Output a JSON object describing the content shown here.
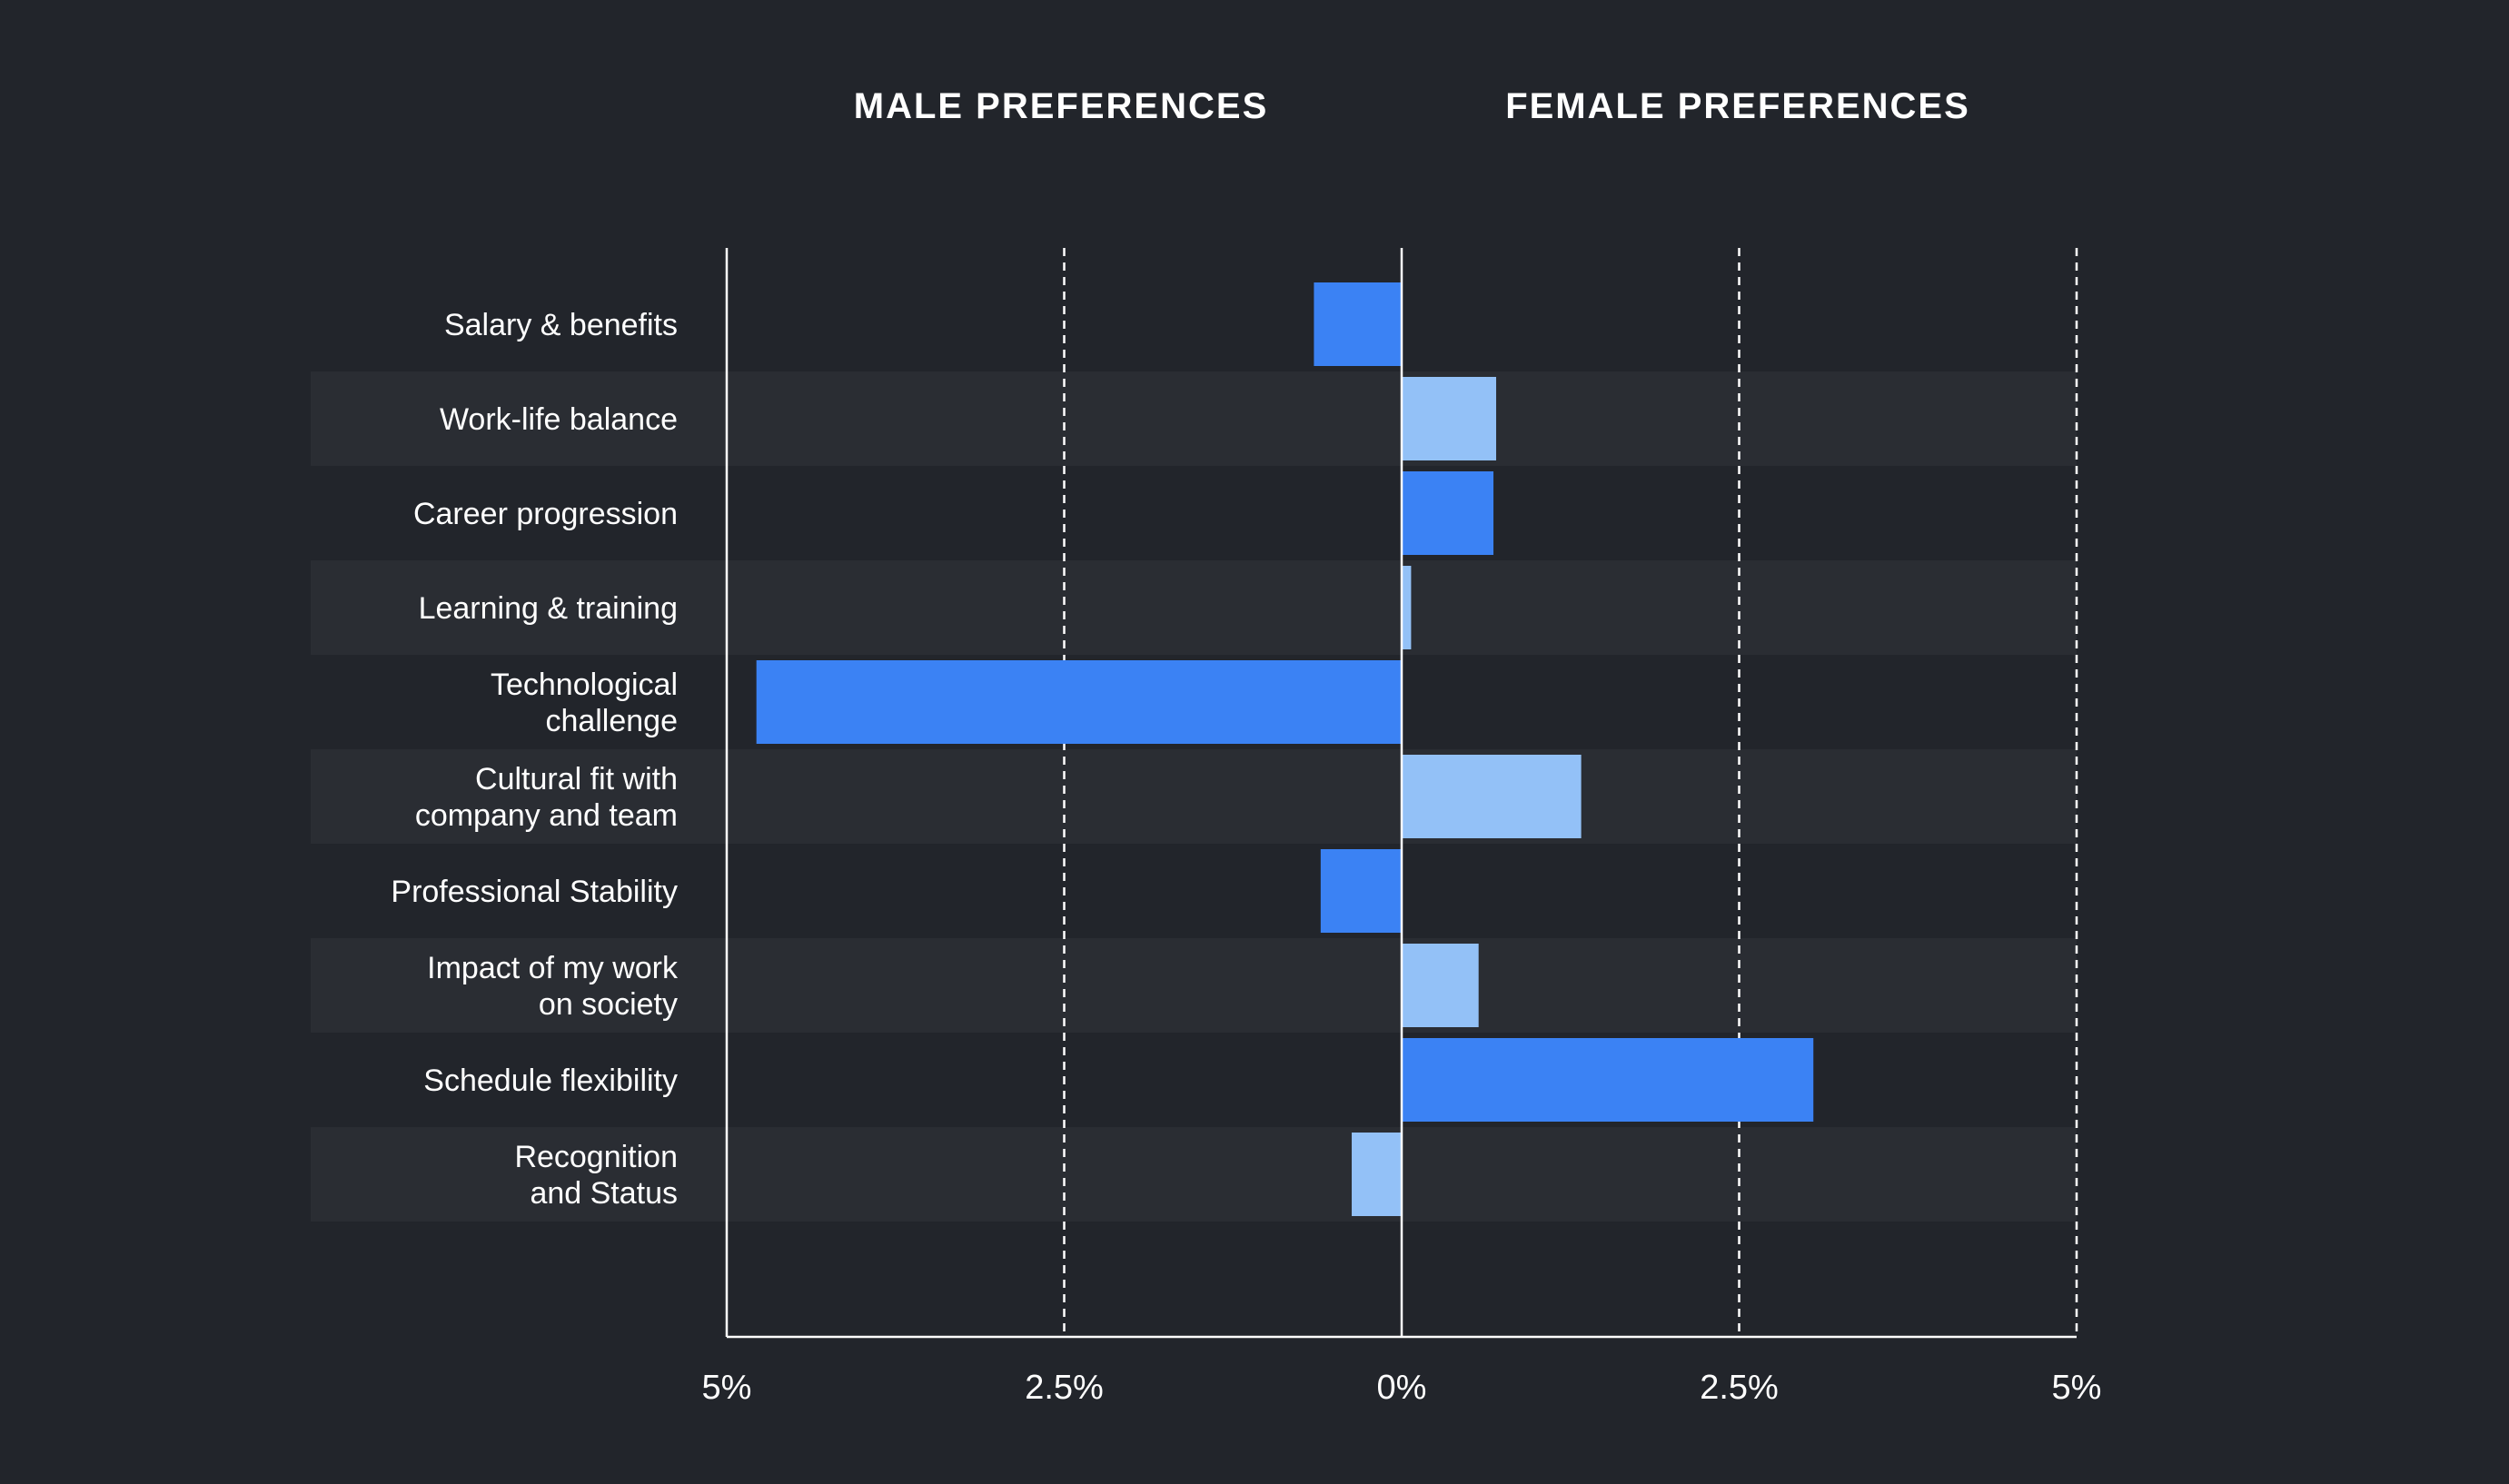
{
  "chart_data": {
    "type": "bar",
    "orientation": "horizontal-diverging",
    "headers": {
      "left": "MALE PREFERENCES",
      "right": "FEMALE PREFERENCES"
    },
    "categories": [
      [
        "Salary & benefits"
      ],
      [
        "Work-life balance"
      ],
      [
        "Career progression"
      ],
      [
        "Learning & training"
      ],
      [
        "Technological",
        "challenge"
      ],
      [
        "Cultural fit with",
        "company and team"
      ],
      [
        "Professional Stability"
      ],
      [
        "Impact of my work",
        "on society"
      ],
      [
        "Schedule flexibility"
      ],
      [
        "Recognition",
        "and Status"
      ]
    ],
    "values": [
      -0.65,
      0.7,
      0.68,
      0.07,
      -4.78,
      1.33,
      -0.6,
      0.57,
      3.05,
      -0.37
    ],
    "xlim": [
      -5,
      5
    ],
    "ticks": [
      -5,
      -2.5,
      0,
      2.5,
      5
    ],
    "tick_labels": [
      "5%",
      "2.5%",
      "0%",
      "2.5%",
      "5%"
    ],
    "grid": "dashed vertical",
    "colors": {
      "background": "#22252b",
      "band": "#2a2d33",
      "bar_dark": "#3b82f4",
      "bar_light": "#93c1f7",
      "axis": "#ffffff",
      "text": "#ffffff"
    }
  }
}
